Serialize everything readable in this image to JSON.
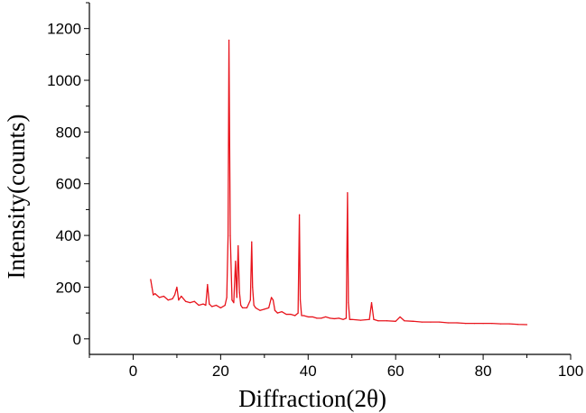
{
  "chart_data": {
    "type": "line",
    "title": "",
    "xlabel": "Diffraction(2θ)",
    "ylabel": "Intensity(counts)",
    "xlim": [
      -10,
      100
    ],
    "ylim": [
      -60,
      1300
    ],
    "x_ticks": [
      0,
      20,
      40,
      60,
      80,
      100
    ],
    "x_tick_labels": [
      "0",
      "20",
      "40",
      "60",
      "80",
      "100"
    ],
    "y_ticks": [
      0,
      200,
      400,
      600,
      800,
      1000,
      1200
    ],
    "y_tick_labels": [
      "0",
      "200",
      "400",
      "600",
      "800",
      "1000",
      "1200"
    ],
    "grid": false,
    "legend": "none",
    "series": [
      {
        "color": "#e8141c",
        "x": [
          4.0,
          4.3,
          4.6,
          5.0,
          6.0,
          7.0,
          8.0,
          9.0,
          9.5,
          10.0,
          10.4,
          11.0,
          12.0,
          13.0,
          14.0,
          15.0,
          16.0,
          16.6,
          17.0,
          17.4,
          18.0,
          19.0,
          20.0,
          21.0,
          21.4,
          21.7,
          21.9,
          22.2,
          22.6,
          23.0,
          23.4,
          23.7,
          24.0,
          24.3,
          24.6,
          25.0,
          26.0,
          26.8,
          27.1,
          27.3,
          27.6,
          28.0,
          29.0,
          30.0,
          31.0,
          31.6,
          32.0,
          32.4,
          33.0,
          34.0,
          35.0,
          36.0,
          37.0,
          37.7,
          38.0,
          38.2,
          38.5,
          39.0,
          40.0,
          41.0,
          42.0,
          43.0,
          44.0,
          45.0,
          46.0,
          47.0,
          48.0,
          48.7,
          49.0,
          49.2,
          49.5,
          50.0,
          52.0,
          54.0,
          54.5,
          55.0,
          56.0,
          58.0,
          60.0,
          61.0,
          62.0,
          64.0,
          66.0,
          68.0,
          70.0,
          72.0,
          74.0,
          76.0,
          78.0,
          80.0,
          82.0,
          84.0,
          86.0,
          88.0,
          90.0
        ],
        "y": [
          230,
          200,
          170,
          175,
          160,
          165,
          150,
          155,
          170,
          200,
          150,
          165,
          145,
          140,
          145,
          130,
          135,
          130,
          210,
          135,
          125,
          130,
          120,
          130,
          160,
          400,
          1155,
          400,
          150,
          140,
          300,
          160,
          360,
          180,
          130,
          120,
          120,
          150,
          375,
          200,
          130,
          120,
          110,
          115,
          120,
          160,
          150,
          110,
          100,
          105,
          95,
          95,
          90,
          100,
          480,
          150,
          90,
          90,
          85,
          85,
          80,
          80,
          85,
          80,
          78,
          80,
          75,
          80,
          565,
          140,
          75,
          75,
          72,
          75,
          140,
          75,
          70,
          70,
          68,
          85,
          70,
          68,
          65,
          65,
          65,
          62,
          62,
          60,
          60,
          60,
          60,
          58,
          58,
          56,
          55
        ]
      }
    ]
  }
}
